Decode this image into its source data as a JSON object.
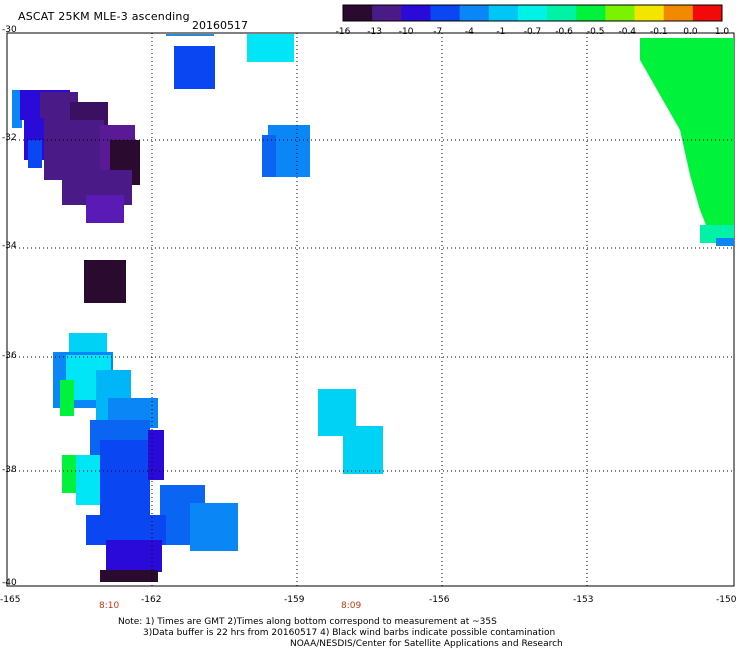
{
  "header": {
    "title": "ASCAT 25KM MLE-3 ascending",
    "date": "20160517"
  },
  "colorbar": {
    "labels": [
      "-16",
      "-13",
      "-10",
      "-7",
      "-4",
      "-1",
      "-0.7",
      "-0.6",
      "-0.5",
      "-0.4",
      "-0.1",
      "0.0",
      "1.0"
    ],
    "colors": [
      "#2a0a2f",
      "#4a1a86",
      "#2a0ad8",
      "#0a46f2",
      "#0a86f6",
      "#00c6f6",
      "#00f2e6",
      "#00f2a6",
      "#00f23a",
      "#7af200",
      "#f2e600",
      "#f28a00",
      "#f20a0a"
    ]
  },
  "axes": {
    "y_labels": [
      "-30",
      "-32",
      "-34",
      "-36",
      "-38",
      "-40"
    ],
    "x_labels": [
      "-165",
      "-162",
      "-159",
      "-156",
      "-153",
      "-150"
    ],
    "times": [
      "8:10",
      "8:09"
    ]
  },
  "notes": {
    "line1": "Note: 1) Times are GMT 2)Times along bottom correspond to measurement at ~35S",
    "line2": "3)Data buffer is 22 hrs from 20160517 4) Black wind barbs indicate possible contamination",
    "line3": "NOAA/NESDIS/Center for Satellite Applications and Research"
  }
}
